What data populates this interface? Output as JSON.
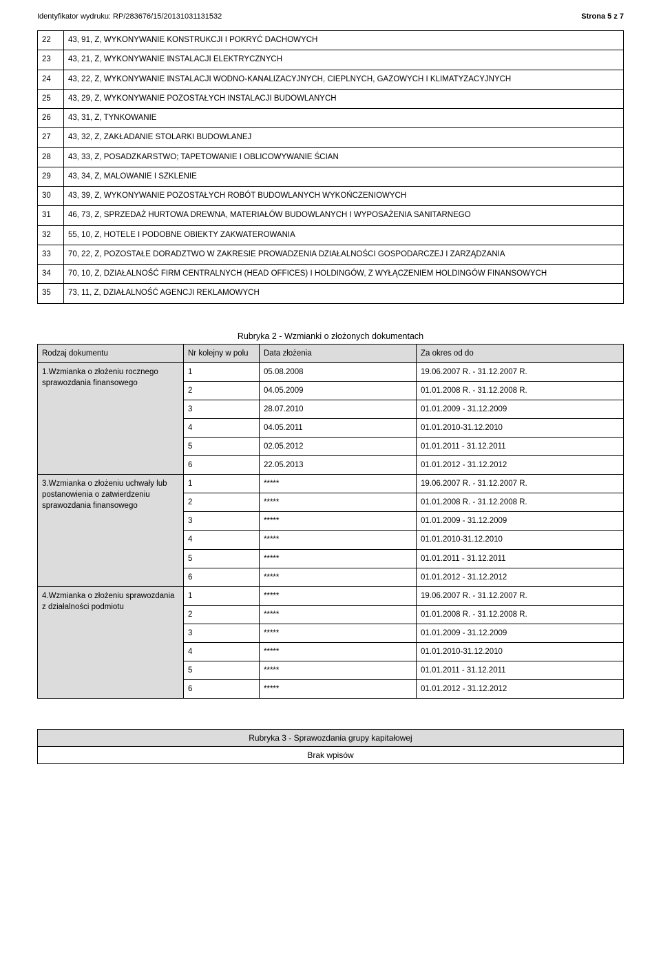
{
  "header": {
    "left": "Identyfikator wydruku: RP/283676/15/20131031131532",
    "right": "Strona 5 z 7"
  },
  "activities": [
    {
      "n": "22",
      "t": "43, 91, Z, WYKONYWANIE KONSTRUKCJI I POKRYĆ DACHOWYCH"
    },
    {
      "n": "23",
      "t": "43, 21, Z, WYKONYWANIE INSTALACJI ELEKTRYCZNYCH"
    },
    {
      "n": "24",
      "t": "43, 22, Z, WYKONYWANIE INSTALACJI WODNO-KANALIZACYJNYCH, CIEPLNYCH, GAZOWYCH I KLIMATYZACYJNYCH"
    },
    {
      "n": "25",
      "t": "43, 29, Z, WYKONYWANIE POZOSTAŁYCH INSTALACJI BUDOWLANYCH"
    },
    {
      "n": "26",
      "t": "43, 31, Z, TYNKOWANIE"
    },
    {
      "n": "27",
      "t": "43, 32, Z, ZAKŁADANIE STOLARKI BUDOWLANEJ"
    },
    {
      "n": "28",
      "t": "43, 33, Z, POSADZKARSTWO; TAPETOWANIE I OBLICOWYWANIE ŚCIAN"
    },
    {
      "n": "29",
      "t": "43, 34, Z, MALOWANIE I SZKLENIE"
    },
    {
      "n": "30",
      "t": "43, 39, Z, WYKONYWANIE POZOSTAŁYCH ROBÓT BUDOWLANYCH WYKOŃCZENIOWYCH"
    },
    {
      "n": "31",
      "t": "46, 73, Z, SPRZEDAŻ HURTOWA DREWNA, MATERIAŁÓW BUDOWLANYCH I WYPOSAŻENIA SANITARNEGO"
    },
    {
      "n": "32",
      "t": "55, 10, Z, HOTELE I PODOBNE OBIEKTY ZAKWATEROWANIA"
    },
    {
      "n": "33",
      "t": "70, 22, Z, POZOSTAŁE DORADZTWO W ZAKRESIE PROWADZENIA DZIAŁALNOŚCI GOSPODARCZEJ I ZARZĄDZANIA"
    },
    {
      "n": "34",
      "t": "70, 10, Z, DZIAŁALNOŚĆ FIRM CENTRALNYCH (HEAD OFFICES) I HOLDINGÓW, Z WYŁĄCZENIEM HOLDINGÓW FINANSOWYCH"
    },
    {
      "n": "35",
      "t": "73, 11, Z, DZIAŁALNOŚĆ AGENCJI REKLAMOWYCH"
    }
  ],
  "rubryka2": {
    "title": "Rubryka 2 - Wzmianki o złożonych dokumentach",
    "headers": {
      "doc": "Rodzaj dokumentu",
      "nr": "Nr kolejny w polu",
      "date": "Data złożenia",
      "period": "Za okres od do"
    },
    "groups": [
      {
        "label": "1.Wzmianka o złożeniu rocznego sprawozdania finansowego",
        "rows": [
          {
            "nr": "1",
            "date": "05.08.2008",
            "period": "19.06.2007 R. - 31.12.2007 R."
          },
          {
            "nr": "2",
            "date": "04.05.2009",
            "period": "01.01.2008 R. - 31.12.2008 R."
          },
          {
            "nr": "3",
            "date": "28.07.2010",
            "period": "01.01.2009 - 31.12.2009"
          },
          {
            "nr": "4",
            "date": "04.05.2011",
            "period": "01.01.2010-31.12.2010"
          },
          {
            "nr": "5",
            "date": "02.05.2012",
            "period": "01.01.2011 - 31.12.2011"
          },
          {
            "nr": "6",
            "date": "22.05.2013",
            "period": "01.01.2012 - 31.12.2012"
          }
        ]
      },
      {
        "label": "3.Wzmianka o złożeniu uchwały lub postanowienia o zatwierdzeniu sprawozdania finansowego",
        "rows": [
          {
            "nr": "1",
            "date": "*****",
            "period": "19.06.2007 R. - 31.12.2007 R."
          },
          {
            "nr": "2",
            "date": "*****",
            "period": "01.01.2008 R. - 31.12.2008 R."
          },
          {
            "nr": "3",
            "date": "*****",
            "period": "01.01.2009 - 31.12.2009"
          },
          {
            "nr": "4",
            "date": "*****",
            "period": "01.01.2010-31.12.2010"
          },
          {
            "nr": "5",
            "date": "*****",
            "period": "01.01.2011 - 31.12.2011"
          },
          {
            "nr": "6",
            "date": "*****",
            "period": "01.01.2012 - 31.12.2012"
          }
        ]
      },
      {
        "label": "4.Wzmianka o złożeniu sprawozdania z działalności podmiotu",
        "rows": [
          {
            "nr": "1",
            "date": "*****",
            "period": "19.06.2007 R. - 31.12.2007 R."
          },
          {
            "nr": "2",
            "date": "*****",
            "period": "01.01.2008 R. - 31.12.2008 R."
          },
          {
            "nr": "3",
            "date": "*****",
            "period": "01.01.2009 - 31.12.2009"
          },
          {
            "nr": "4",
            "date": "*****",
            "period": "01.01.2010-31.12.2010"
          },
          {
            "nr": "5",
            "date": "*****",
            "period": "01.01.2011 - 31.12.2011"
          },
          {
            "nr": "6",
            "date": "*****",
            "period": "01.01.2012 - 31.12.2012"
          }
        ]
      }
    ]
  },
  "rubryka3": {
    "title": "Rubryka 3 - Sprawozdania grupy kapitałowej",
    "body": "Brak wpisów"
  },
  "colors": {
    "shade": "#dcdcdc",
    "text": "#000000",
    "bg": "#ffffff",
    "border": "#000000"
  },
  "fonts": {
    "body_pt": 9,
    "header_pt": 8.5
  }
}
